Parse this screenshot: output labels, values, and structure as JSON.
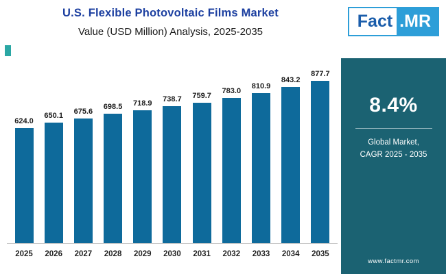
{
  "header": {
    "title": "U.S. Flexible Photovoltaic Films Market",
    "subtitle": "Value (USD Million) Analysis, 2025-2035"
  },
  "logo": {
    "part1": "Fact",
    "part2": ".MR"
  },
  "sidebar": {
    "cagr_value": "8.4%",
    "cagr_label_line1": "Global Market,",
    "cagr_label_line2": "CAGR 2025 - 2035",
    "website": "www.factmr.com",
    "background": "#1b6272"
  },
  "chart_data": {
    "type": "bar",
    "categories": [
      "2025",
      "2026",
      "2027",
      "2028",
      "2029",
      "2030",
      "2031",
      "2032",
      "2033",
      "2034",
      "2035"
    ],
    "values": [
      624.0,
      650.1,
      675.6,
      698.5,
      718.9,
      738.7,
      759.7,
      783.0,
      810.9,
      843.2,
      877.7
    ],
    "title": "U.S. Flexible Photovoltaic Films Market",
    "subtitle": "Value (USD Million) Analysis, 2025-2035",
    "xlabel": "",
    "ylabel": "",
    "ylim": [
      0,
      950
    ],
    "grid": false,
    "legend": false,
    "bar_color": "#0e6a9b",
    "value_label_decimals": 1
  },
  "colors": {
    "title_blue": "#1c3fa0",
    "accent_teal": "#2aa7a4",
    "logo_blue": "#2d9ed8"
  }
}
